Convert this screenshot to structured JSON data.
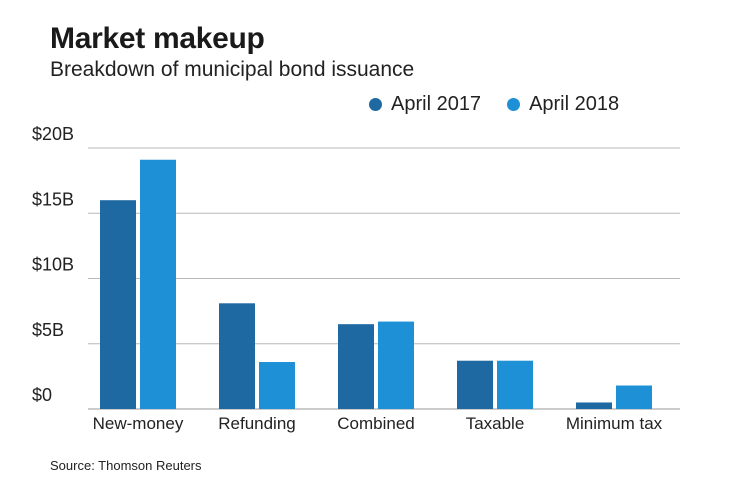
{
  "chart_data": {
    "type": "bar",
    "title": "Market makeup",
    "subtitle": "Breakdown of municipal bond issuance",
    "categories": [
      "New-money",
      "Refunding",
      "Combined",
      "Taxable",
      "Minimum tax"
    ],
    "series": [
      {
        "name": "April 2017",
        "color": "#1f69a3",
        "values": [
          16.0,
          8.1,
          6.5,
          3.7,
          0.5
        ]
      },
      {
        "name": "April 2018",
        "color": "#1e90d6",
        "values": [
          19.1,
          3.6,
          6.7,
          3.7,
          1.8
        ]
      }
    ],
    "ylim": [
      0,
      20
    ],
    "yticks": [
      {
        "value": 20,
        "label": "$20B"
      },
      {
        "value": 15,
        "label": "$15B"
      },
      {
        "value": 10,
        "label": "$10B"
      },
      {
        "value": 5,
        "label": "$5B"
      },
      {
        "value": 0,
        "label": "$0"
      }
    ],
    "xlabel": "",
    "ylabel": "",
    "grid": true,
    "legend_position": "top-right",
    "source": "Source: Thomson Reuters"
  }
}
